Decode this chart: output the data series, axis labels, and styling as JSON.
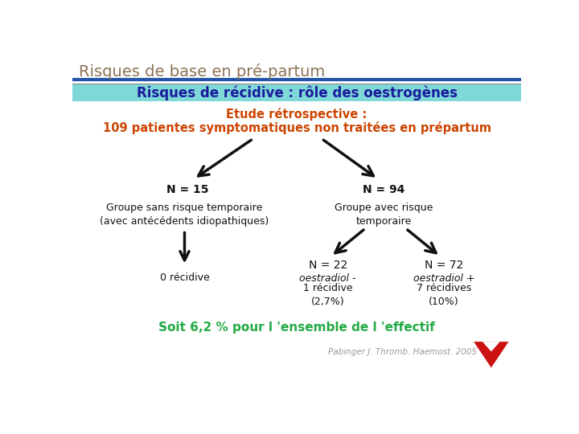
{
  "title_main": "Risques de base en pré-partum",
  "title_main_color": "#8B7355",
  "title_main_fontsize": 14,
  "subtitle_bg": "#7fd8d8",
  "subtitle_text": "Risques de récidive : rôle des oestrogènes",
  "subtitle_color": "#1a1a9c",
  "subtitle_fontsize": 12,
  "study_line1": "Etude rétrospective :",
  "study_line2": "109 patientes symptomatiques non traitées en prépartum",
  "study_color": "#cc4400",
  "study_fontsize": 10.5,
  "n15_label": "N = 15",
  "n94_label": "N = 94",
  "group1_text": "Groupe sans risque temporaire\n(avec antécédents idiopathiques)",
  "group2_text": "Groupe avec risque\ntemporaire",
  "left_bottom_label": "0 récidive",
  "n22_label": "N = 22",
  "n72_label": "N = 72",
  "oestradiol_minus": "oestradiol -",
  "oestradiol_plus": "oestradiol +",
  "recidive1": "1 récidive\n(2,7%)",
  "recidive7": "7 récidives\n(10%)",
  "conclusion": "Soit 6,2 % pour l 'ensemble de l 'effectif",
  "conclusion_color": "#22aa44",
  "reference": "Pabinger J. Thromb. Haemost. 2005",
  "bg_color": "#ffffff",
  "arrow_color_dark": "#111111",
  "label_fontsize": 9,
  "nval_fontsize": 10
}
